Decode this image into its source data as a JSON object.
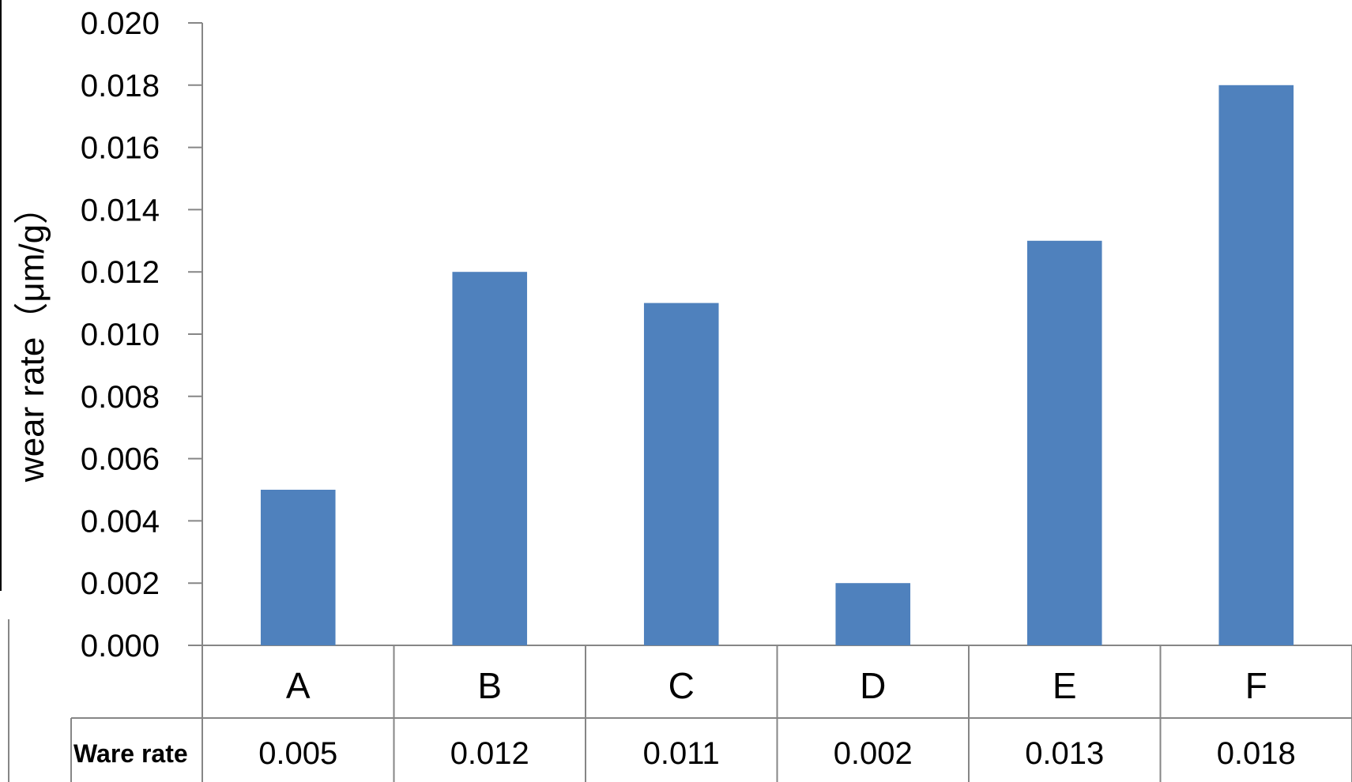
{
  "chart_data": {
    "type": "bar",
    "title": "",
    "xlabel": "",
    "ylabel": "wear rate（μm/g）",
    "categories": [
      "A",
      "B",
      "C",
      "D",
      "E",
      "F"
    ],
    "series": [
      {
        "name": "Ware rate",
        "values": [
          0.005,
          0.012,
          0.011,
          0.002,
          0.013,
          0.018
        ],
        "value_labels": [
          "0.005",
          "0.012",
          "0.011",
          "0.002",
          "0.013",
          "0.018"
        ]
      }
    ],
    "ylim": [
      0,
      0.02
    ],
    "yticks": [
      0,
      0.002,
      0.004,
      0.006,
      0.008,
      0.01,
      0.012,
      0.014,
      0.016,
      0.018,
      0.02
    ],
    "ytick_labels": [
      "0.000",
      "0.002",
      "0.004",
      "0.006",
      "0.008",
      "0.010",
      "0.012",
      "0.014",
      "0.016",
      "0.018",
      "0.020"
    ],
    "grid": false,
    "legend": "none",
    "data_table": true,
    "bar_color": "#4f81bd",
    "axis_color": "#868686"
  }
}
